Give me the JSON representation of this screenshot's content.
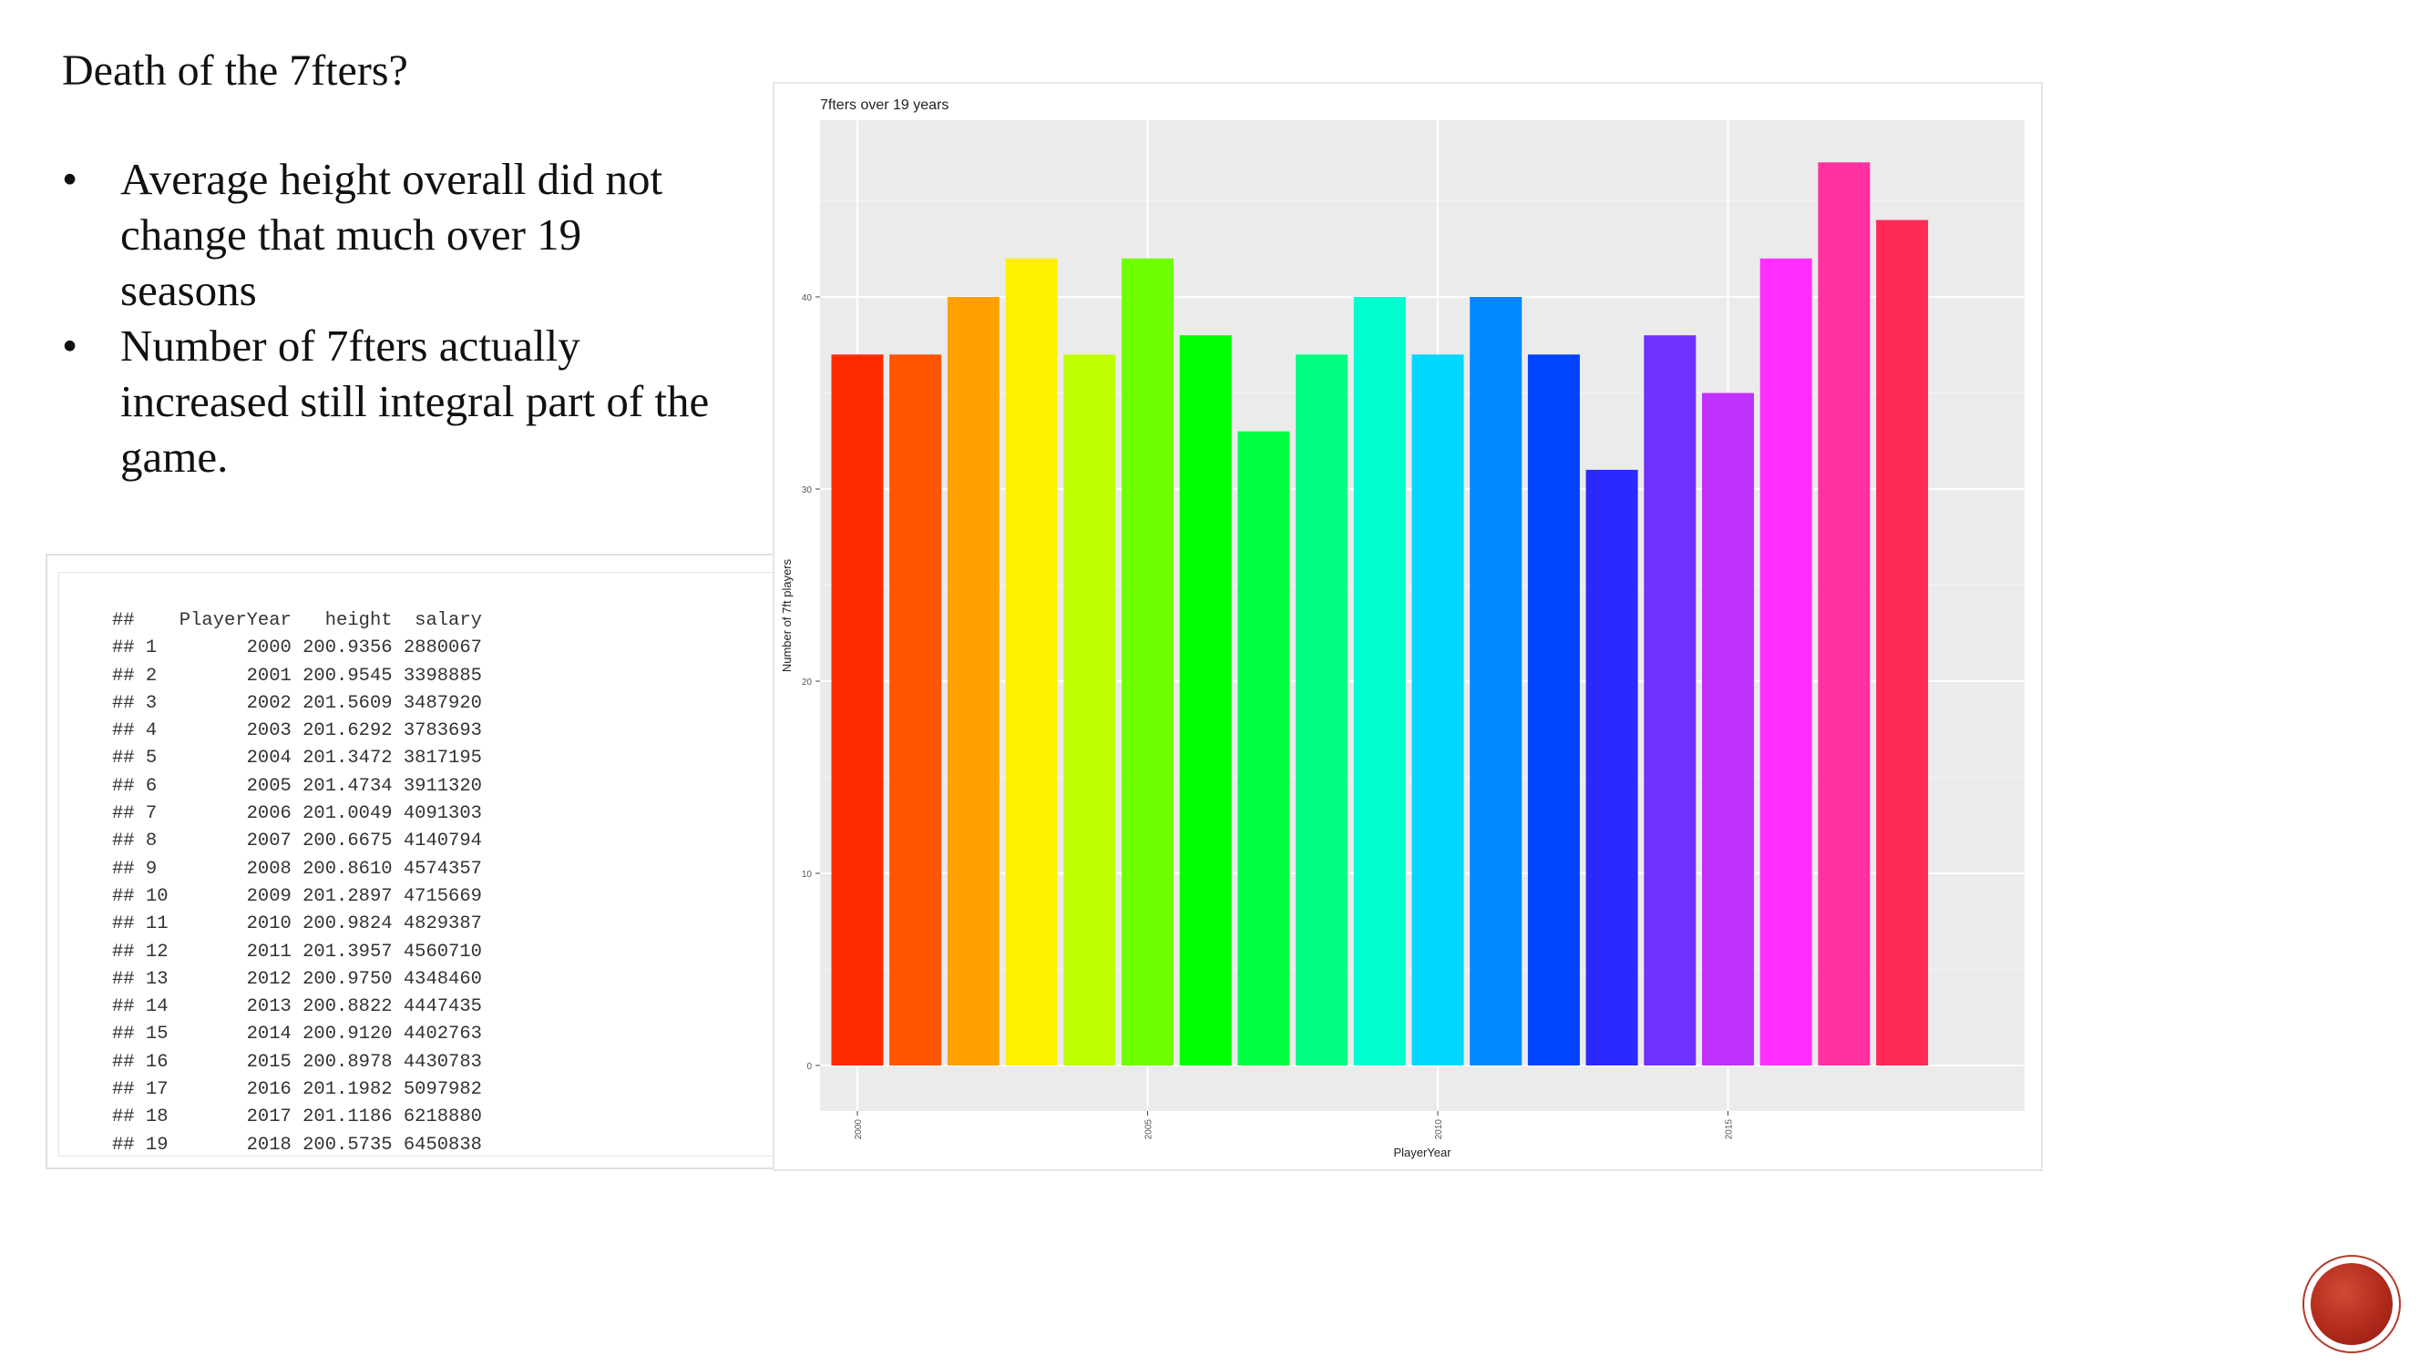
{
  "slide": {
    "title": "Death of the 7fters?",
    "bullets": [
      "Average height overall did not change that much over 19 seasons",
      "Number of 7fters actually increased still integral part of the game."
    ]
  },
  "r_output": {
    "lines": [
      "##    PlayerYear   height  salary",
      "## 1        2000 200.9356 2880067",
      "## 2        2001 200.9545 3398885",
      "## 3        2002 201.5609 3487920",
      "## 4        2003 201.6292 3783693",
      "## 5        2004 201.3472 3817195",
      "## 6        2005 201.4734 3911320",
      "## 7        2006 201.0049 4091303",
      "## 8        2007 200.6675 4140794",
      "## 9        2008 200.8610 4574357",
      "## 10       2009 201.2897 4715669",
      "## 11       2010 200.9824 4829387",
      "## 12       2011 201.3957 4560710",
      "## 13       2012 200.9750 4348460",
      "## 14       2013 200.8822 4447435",
      "## 15       2014 200.9120 4402763",
      "## 16       2015 200.8978 4430783",
      "## 17       2016 201.1982 5097982",
      "## 18       2017 201.1186 6218880",
      "## 19       2018 200.5735 6450838"
    ]
  },
  "chart_data": {
    "type": "bar",
    "title": "7fters over 19 years",
    "xlabel": "PlayerYear",
    "ylabel": "Number of 7ft players",
    "categories": [
      2000,
      2001,
      2002,
      2003,
      2004,
      2005,
      2006,
      2007,
      2008,
      2009,
      2010,
      2011,
      2012,
      2013,
      2014,
      2015,
      2016,
      2017,
      2018
    ],
    "values": [
      37,
      37,
      40,
      42,
      37,
      42,
      38,
      33,
      37,
      40,
      37,
      40,
      37,
      31,
      38,
      35,
      42,
      47,
      44
    ],
    "colors": [
      "#ff2a00",
      "#ff5500",
      "#ffa000",
      "#fff000",
      "#c0ff00",
      "#70ff00",
      "#00ff00",
      "#00ff40",
      "#00ff80",
      "#00ffd0",
      "#00d8ff",
      "#0088ff",
      "#0044ff",
      "#2a2aff",
      "#7030ff",
      "#c030ff",
      "#ff30ff",
      "#ff30a0",
      "#ff2a55"
    ],
    "x_ticks": [
      2000,
      2005,
      2010,
      2015
    ],
    "y_ticks": [
      0,
      10,
      20,
      30,
      40
    ],
    "ylim": [
      0,
      49.3
    ],
    "grid": true,
    "panel_background": "#ebebeb",
    "legend": "none"
  }
}
